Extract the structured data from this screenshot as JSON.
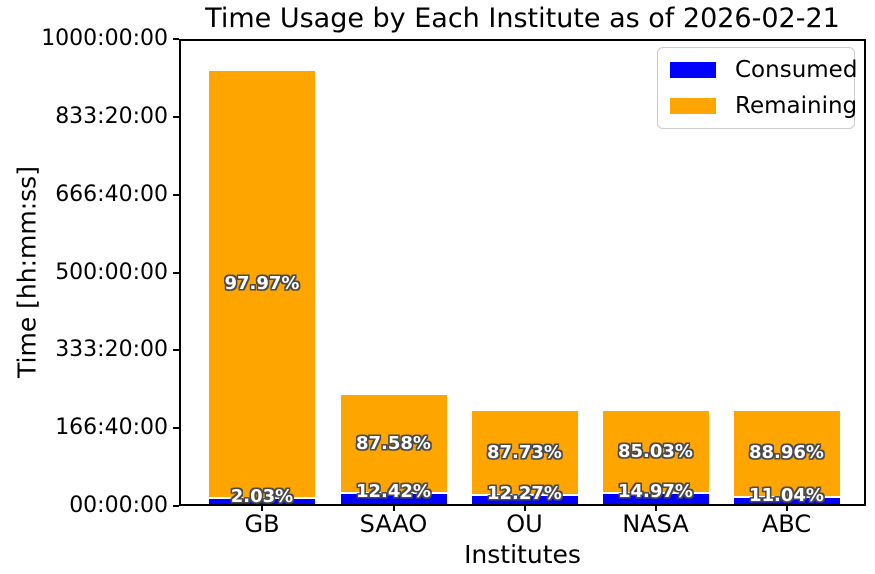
{
  "chart_data": {
    "type": "bar",
    "stacked": true,
    "title": "Time Usage by Each Institute as of 2026-02-21",
    "xlabel": "Institutes",
    "ylabel": "Time [hh:mm:ss]",
    "categories": [
      "GB",
      "SAAO",
      "OU",
      "NASA",
      "ABC"
    ],
    "ylim_hours": [
      0,
      1000
    ],
    "ytick_values_hours": [
      0,
      166.667,
      333.333,
      500,
      666.667,
      833.333,
      1000
    ],
    "ytick_labels": [
      "00:00:00",
      "166:40:00",
      "333:20:00",
      "500:00:00",
      "666:40:00",
      "833:20:00",
      "1000:00:00"
    ],
    "grid": false,
    "legend_position": "upper right",
    "totals_hours_est": [
      930.6,
      237.2,
      203.0,
      203.0,
      203.0
    ],
    "series": [
      {
        "name": "Consumed",
        "color": "#0000ff",
        "values_hours_est": [
          18.9,
          29.5,
          24.9,
          30.4,
          22.4
        ],
        "percent_labels": [
          "2.03%",
          "12.42%",
          "12.27%",
          "14.97%",
          "11.04%"
        ]
      },
      {
        "name": "Remaining",
        "color": "#ffa500",
        "values_hours_est": [
          911.7,
          207.7,
          178.1,
          172.6,
          180.6
        ],
        "percent_labels": [
          "97.97%",
          "87.58%",
          "87.73%",
          "85.03%",
          "88.96%"
        ]
      }
    ],
    "colors": {
      "spine": "#000000",
      "text": "#000000",
      "legend_border": "#cccccc",
      "pct_label_fill": "#ffffff",
      "pct_label_outline": "#4a4a4a",
      "background": "#ffffff"
    }
  }
}
